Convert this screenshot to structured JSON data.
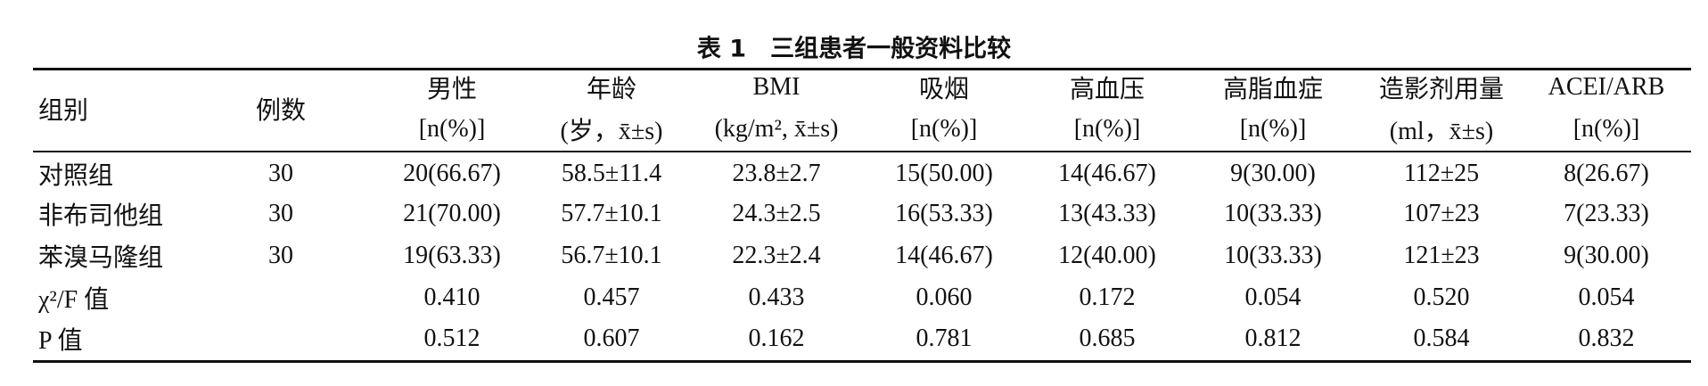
{
  "title": "表 1　三组患者一般资料比较",
  "columns": [
    {
      "name": "组别"
    },
    {
      "name": "例数"
    },
    {
      "name": "男性",
      "unit": "[n(%)]"
    },
    {
      "name": "年龄",
      "unit": "(岁，x̄±s)"
    },
    {
      "name": "BMI",
      "unit": "(kg/m², x̄±s)"
    },
    {
      "name": "吸烟",
      "unit": "[n(%)]"
    },
    {
      "name": "高血压",
      "unit": "[n(%)]"
    },
    {
      "name": "高脂血症",
      "unit": "[n(%)]"
    },
    {
      "name": "造影剂用量",
      "unit": "(ml，x̄±s)"
    },
    {
      "name": "ACEI/ARB",
      "unit": "[n(%)]"
    }
  ],
  "rows": [
    {
      "group": "对照组",
      "n": "30",
      "cells": [
        "20(66.67)",
        "58.5±11.4",
        "23.8±2.7",
        "15(50.00)",
        "14(46.67)",
        "9(30.00)",
        "112±25",
        "8(26.67)"
      ]
    },
    {
      "group": "非布司他组",
      "n": "30",
      "cells": [
        "21(70.00)",
        "57.7±10.1",
        "24.3±2.5",
        "16(53.33)",
        "13(43.33)",
        "10(33.33)",
        "107±23",
        "7(23.33)"
      ]
    },
    {
      "group": "苯溴马隆组",
      "n": "30",
      "cells": [
        "19(63.33)",
        "56.7±10.1",
        "22.3±2.4",
        "14(46.67)",
        "12(40.00)",
        "10(33.33)",
        "121±23",
        "9(30.00)"
      ]
    },
    {
      "group": "χ²/F 值",
      "cells": [
        "0.410",
        "0.457",
        "0.433",
        "0.060",
        "0.172",
        "0.054",
        "0.520",
        "0.054"
      ]
    },
    {
      "group": "P 值",
      "cells": [
        "0.512",
        "0.607",
        "0.162",
        "0.781",
        "0.685",
        "0.812",
        "0.584",
        "0.832"
      ]
    }
  ]
}
